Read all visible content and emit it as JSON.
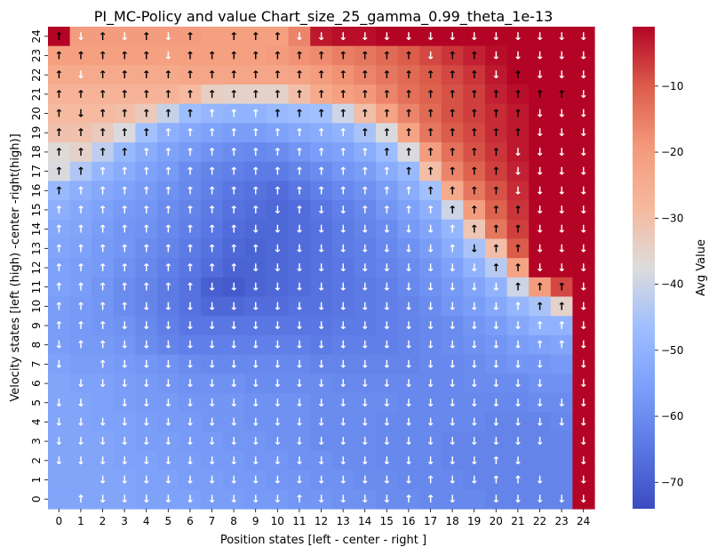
{
  "chart_data": {
    "type": "heatmap",
    "title": "PI_MC-Policy and value Chart_size_25_gamma_0.99_theta_1e-13",
    "xlabel": "Position states [left - center - right ]",
    "ylabel": "Velocity states [left (high) -center -right(high)]",
    "x_ticks": [
      "0",
      "1",
      "2",
      "3",
      "4",
      "5",
      "6",
      "7",
      "8",
      "9",
      "10",
      "11",
      "12",
      "13",
      "14",
      "15",
      "16",
      "17",
      "18",
      "19",
      "20",
      "21",
      "22",
      "23",
      "24"
    ],
    "y_ticks": [
      "24",
      "23",
      "22",
      "21",
      "20",
      "19",
      "18",
      "17",
      "16",
      "15",
      "14",
      "13",
      "12",
      "11",
      "10",
      "9",
      "8",
      "7",
      "6",
      "5",
      "4",
      "3",
      "2",
      "1",
      "0"
    ],
    "colorbar": {
      "label": "Avg Value",
      "ticks": [
        "-10",
        "-20",
        "-30",
        "-40",
        "-50",
        "-60",
        "-70"
      ],
      "vmin": -74,
      "vmax": -1,
      "cmap": "coolwarm"
    },
    "values": [
      [
        -1,
        -20,
        -20,
        -20,
        -20,
        -20,
        -20,
        -21,
        -21,
        -21,
        -21,
        -16,
        -3,
        -2,
        -2,
        -1,
        -1,
        -1,
        -1,
        -1,
        -1,
        -1,
        -1,
        -1,
        -1
      ],
      [
        -21,
        -21,
        -21,
        -21,
        -21,
        -21,
        -21,
        -21,
        -21,
        -21,
        -20,
        -18,
        -17,
        -15,
        -14,
        -12,
        -10,
        -8,
        -6,
        -4,
        -2,
        -1,
        -1,
        -1,
        -1
      ],
      [
        -24,
        -24,
        -24,
        -24,
        -24,
        -24,
        -23,
        -23,
        -23,
        -23,
        -23,
        -22,
        -20,
        -18,
        -16,
        -14,
        -12,
        -10,
        -8,
        -6,
        -3,
        -1,
        -1,
        -1,
        -1
      ],
      [
        -27,
        -27,
        -27,
        -27,
        -27,
        -27,
        -29,
        -34,
        -35,
        -35,
        -35,
        -30,
        -24,
        -21,
        -19,
        -16,
        -13,
        -11,
        -9,
        -7,
        -4,
        -2,
        -1,
        -1,
        -1
      ],
      [
        -29,
        -29,
        -29,
        -30,
        -33,
        -41,
        -47,
        -49,
        -50,
        -50,
        -48,
        -47,
        -46,
        -40,
        -30,
        -22,
        -16,
        -12,
        -9,
        -7,
        -5,
        -3,
        -1,
        -1,
        -1
      ],
      [
        -31,
        -31,
        -33,
        -38,
        -46,
        -51,
        -53,
        -55,
        -56,
        -56,
        -55,
        -53,
        -52,
        -50,
        -45,
        -38,
        -22,
        -14,
        -10,
        -8,
        -5,
        -3,
        -1,
        -1,
        -1
      ],
      [
        -37,
        -35,
        -42,
        -48,
        -52,
        -55,
        -57,
        -59,
        -60,
        -61,
        -60,
        -58,
        -56,
        -55,
        -52,
        -47,
        -38,
        -20,
        -13,
        -9,
        -6,
        -3,
        -1,
        -1,
        -1
      ],
      [
        -38,
        -44,
        -49,
        -52,
        -55,
        -57,
        -60,
        -62,
        -63,
        -64,
        -64,
        -62,
        -60,
        -58,
        -56,
        -52,
        -48,
        -30,
        -16,
        -11,
        -7,
        -4,
        -1,
        -1,
        -1
      ],
      [
        -48,
        -51,
        -53,
        -55,
        -57,
        -59,
        -61,
        -63,
        -65,
        -66,
        -67,
        -65,
        -63,
        -61,
        -59,
        -56,
        -52,
        -46,
        -24,
        -14,
        -9,
        -5,
        -1,
        -1,
        -1
      ],
      [
        -51,
        -53,
        -55,
        -57,
        -58,
        -60,
        -62,
        -64,
        -66,
        -67,
        -68,
        -67,
        -65,
        -63,
        -61,
        -58,
        -55,
        -51,
        -40,
        -20,
        -11,
        -6,
        -1,
        -1,
        -1
      ],
      [
        -53,
        -54,
        -56,
        -58,
        -59,
        -61,
        -63,
        -65,
        -67,
        -68,
        -68,
        -67,
        -66,
        -64,
        -62,
        -60,
        -57,
        -54,
        -49,
        -32,
        -14,
        -7,
        -1,
        -1,
        -1
      ],
      [
        -54,
        -55,
        -57,
        -58,
        -60,
        -62,
        -64,
        -66,
        -68,
        -69,
        -68,
        -67,
        -66,
        -64,
        -63,
        -61,
        -59,
        -56,
        -52,
        -45,
        -30,
        -10,
        -1,
        -1,
        -1
      ],
      [
        -55,
        -56,
        -57,
        -59,
        -61,
        -63,
        -65,
        -67,
        -69,
        -69,
        -68,
        -67,
        -66,
        -65,
        -63,
        -62,
        -60,
        -58,
        -55,
        -50,
        -43,
        -22,
        -1,
        -1,
        -1
      ],
      [
        -55,
        -56,
        -58,
        -60,
        -62,
        -64,
        -66,
        -70,
        -71,
        -69,
        -68,
        -67,
        -66,
        -65,
        -64,
        -63,
        -61,
        -59,
        -57,
        -54,
        -50,
        -40,
        -20,
        -8,
        -1
      ],
      [
        -56,
        -57,
        -58,
        -60,
        -62,
        -64,
        -66,
        -68,
        -68,
        -67,
        -67,
        -66,
        -66,
        -65,
        -64,
        -63,
        -62,
        -60,
        -58,
        -56,
        -53,
        -49,
        -45,
        -35,
        -1
      ],
      [
        -56,
        -57,
        -58,
        -59,
        -61,
        -63,
        -65,
        -65,
        -65,
        -65,
        -65,
        -65,
        -65,
        -64,
        -64,
        -63,
        -62,
        -61,
        -60,
        -58,
        -56,
        -53,
        -50,
        -50,
        -1
      ],
      [
        -56,
        -57,
        -57,
        -58,
        -60,
        -62,
        -63,
        -63,
        -63,
        -63,
        -63,
        -63,
        -64,
        -63,
        -63,
        -63,
        -62,
        -61,
        -60,
        -59,
        -58,
        -56,
        -55,
        -54,
        -1
      ],
      [
        -55,
        -56,
        -56,
        -57,
        -58,
        -59,
        -60,
        -61,
        -61,
        -61,
        -61,
        -61,
        -62,
        -62,
        -62,
        -62,
        -62,
        -61,
        -61,
        -60,
        -59,
        -58,
        -58,
        -57,
        -1
      ],
      [
        -54,
        -55,
        -55,
        -56,
        -57,
        -58,
        -59,
        -59,
        -59,
        -60,
        -60,
        -60,
        -60,
        -61,
        -61,
        -61,
        -61,
        -61,
        -61,
        -60,
        -60,
        -60,
        -59,
        -59,
        -1
      ],
      [
        -54,
        -54,
        -55,
        -56,
        -57,
        -57,
        -58,
        -58,
        -58,
        -59,
        -59,
        -59,
        -60,
        -60,
        -60,
        -60,
        -61,
        -61,
        -61,
        -61,
        -61,
        -61,
        -60,
        -60,
        -1
      ],
      [
        -54,
        -54,
        -55,
        -55,
        -56,
        -57,
        -57,
        -58,
        -58,
        -59,
        -59,
        -59,
        -60,
        -60,
        -60,
        -61,
        -61,
        -61,
        -61,
        -61,
        -62,
        -62,
        -62,
        -61,
        -1
      ],
      [
        -54,
        -54,
        -54,
        -55,
        -56,
        -56,
        -57,
        -57,
        -58,
        -58,
        -59,
        -59,
        -60,
        -60,
        -60,
        -61,
        -61,
        -61,
        -62,
        -62,
        -62,
        -62,
        -62,
        -62,
        -1
      ],
      [
        -54,
        -54,
        -54,
        -55,
        -55,
        -56,
        -56,
        -57,
        -57,
        -58,
        -58,
        -59,
        -59,
        -60,
        -60,
        -61,
        -61,
        -61,
        -62,
        -62,
        -62,
        -62,
        -62,
        -62,
        -1
      ],
      [
        -54,
        -54,
        -54,
        -54,
        -55,
        -55,
        -56,
        -56,
        -57,
        -57,
        -58,
        -58,
        -59,
        -59,
        -60,
        -60,
        -61,
        -61,
        -61,
        -62,
        -62,
        -62,
        -62,
        -62,
        -1
      ],
      [
        -54,
        -54,
        -54,
        -54,
        -55,
        -55,
        -55,
        -56,
        -56,
        -57,
        -57,
        -58,
        -58,
        -59,
        -59,
        -60,
        -60,
        -61,
        -61,
        -61,
        -62,
        -62,
        -62,
        -62,
        -1
      ]
    ],
    "actions": [
      "↑↓↑↓↑↓↑ ↑↑↑↓↓↓↓↓↓↓↓↓↓↓↓↓↓",
      "↑↑↑↑↑↓↑↑↑↑↑↑↑↑↑↑↑↓↑↑↓↓↓↓↓",
      "↑↓↑↑↑↑↑↑↑↑↑↑↑↑↑↑↑↑↑↑↓↑↓↓↓",
      "↑↑↑↑↑↑↑↑↑↑↑↑↑↑↑↑↑↑↑↑↑↑↑↑↓",
      "↑↓↑↑↑↑↑↑↑↑↑↑↑↑↑↑↑↑↑↑↑↑↓↓↓",
      "↑↑↑↑↑↑↑↑↑↑↑↑↑↑↑↑↑↑↑↑↑↑↓↓↓",
      "↑↑↑↑↑↑↑↑↑↑↑↑↑↑↑↑↑↑↑↑↑↓↓↓↓",
      "↑↑↑↑↑↑↑↑↑↑↑↑↑↑↑↑↑↑↑↑↑↓↓↓↓",
      "↑↑↑↑↑↑↑↑↑↑↑↑↑↑↑↑↑↑↑↑↑↓↓↓↓",
      "↑↑↑↑↑↑↑↑↑↑↓↑↓↓↑↑↑↑↑↑↑↑↓↓↓",
      "↑↑↑↑↑↑↑↑↑↓↓↓↓↓↓↓↓↓↑↑↑↑↓↓↓",
      "↑↑↑↑↑↑↑↑↑↑↓↓↓↓↓↓↓↓↑↓↑↑↓↓↓",
      "↑↑↑↑↑↑↑↑↑↓↓↓↓↓↓↓↓↓↓↓↑↑↓↓↓",
      "↑↑↑↑↑↑↑↓↓↓↓↓↓↓↓↓↓↓↓↓↓↑↑↑↓",
      "↑↑↑↑↓↓↓↓↓↓↓↓↓↓↓↓↓↓↓↓↓↑↑↑↓",
      "↑↑↑↓↓↓↓↓↓↓↓↓↓↓↓↓↓↓↓↓↓↓↑↑↓",
      "↓↑↑↓↓↓↓↓↓↓↓↓↓↓↓↓↓↓↓↓↓↓↑↑↓",
      "↓ ↑↓↓↓↓↓↓↓↓↓↓↓↓↓↓↓↓↓↓↓↓ ↓",
      " ↓↓↓↓↓↓↓↓↓↓↓↓↓↓↓↓↓↓↓↓↓↓ ↓",
      "↓↓ ↓↓↓↓↓↓↓↓↓↓↓↓↓↓↓↓↓↓↓↓↓↓",
      "↓↓↓↓↓↓↓↓↓↓↓↓↓↓↓↓↓↓↓↓↓↓↓↓↓",
      "↓↓↓↓↓↓↓↓↓↓↓↓↓↓↓↓↓↓↓↓↓↓↓ ↓",
      "↓↓↓↓↓↓↓↓↓↓↓↓↓↓↓↓↓↓↓↓↑↓  ↓",
      "  ↓↓↓↓↓↓↓↓↓↓↓↓↓↓↓↑↓↓↑↑↓ ↓",
      " ↑↓↓↓↓↓↓↓↓↓↑↓↓↓↓↑↑↓ ↓↓↓↓↓"
    ]
  }
}
